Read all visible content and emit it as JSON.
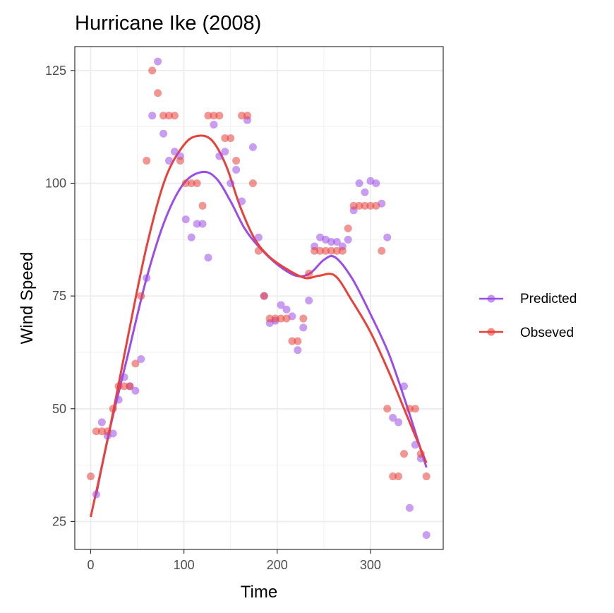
{
  "chart_data": {
    "type": "scatter",
    "title": "Hurricane Ike (2008)",
    "xlabel": "Time",
    "ylabel": "Wind Speed",
    "xlim": [
      -17,
      378
    ],
    "ylim": [
      18.8,
      130.3
    ],
    "x_ticks": [
      "0",
      "100",
      "200",
      "300"
    ],
    "y_ticks": [
      "25",
      "50",
      "75",
      "100",
      "125"
    ],
    "grid": true,
    "legend_position": "right",
    "series": [
      {
        "name": "Predicted",
        "color": "#9b4de8",
        "points": [
          {
            "x": 6,
            "y": 31
          },
          {
            "x": 12,
            "y": 47
          },
          {
            "x": 18,
            "y": 44
          },
          {
            "x": 24,
            "y": 44.5
          },
          {
            "x": 30,
            "y": 52
          },
          {
            "x": 36,
            "y": 57
          },
          {
            "x": 42,
            "y": 55
          },
          {
            "x": 48,
            "y": 54
          },
          {
            "x": 54,
            "y": 61
          },
          {
            "x": 60,
            "y": 79
          },
          {
            "x": 66,
            "y": 115
          },
          {
            "x": 72,
            "y": 127
          },
          {
            "x": 78,
            "y": 111
          },
          {
            "x": 84,
            "y": 105
          },
          {
            "x": 90,
            "y": 107
          },
          {
            "x": 96,
            "y": 106
          },
          {
            "x": 102,
            "y": 92
          },
          {
            "x": 108,
            "y": 88
          },
          {
            "x": 114,
            "y": 91
          },
          {
            "x": 120,
            "y": 91
          },
          {
            "x": 126,
            "y": 83.5
          },
          {
            "x": 132,
            "y": 113
          },
          {
            "x": 138,
            "y": 106
          },
          {
            "x": 144,
            "y": 107
          },
          {
            "x": 150,
            "y": 100
          },
          {
            "x": 156,
            "y": 103
          },
          {
            "x": 162,
            "y": 96
          },
          {
            "x": 168,
            "y": 114
          },
          {
            "x": 174,
            "y": 108
          },
          {
            "x": 180,
            "y": 88
          },
          {
            "x": 186,
            "y": 75
          },
          {
            "x": 192,
            "y": 69
          },
          {
            "x": 198,
            "y": 69.5
          },
          {
            "x": 204,
            "y": 73
          },
          {
            "x": 210,
            "y": 72
          },
          {
            "x": 216,
            "y": 70.5
          },
          {
            "x": 222,
            "y": 63
          },
          {
            "x": 228,
            "y": 68
          },
          {
            "x": 234,
            "y": 74
          },
          {
            "x": 240,
            "y": 86
          },
          {
            "x": 246,
            "y": 88
          },
          {
            "x": 252,
            "y": 87.5
          },
          {
            "x": 258,
            "y": 87
          },
          {
            "x": 264,
            "y": 87
          },
          {
            "x": 270,
            "y": 86
          },
          {
            "x": 276,
            "y": 87.5
          },
          {
            "x": 282,
            "y": 94
          },
          {
            "x": 288,
            "y": 100
          },
          {
            "x": 294,
            "y": 98
          },
          {
            "x": 300,
            "y": 100.5
          },
          {
            "x": 306,
            "y": 100
          },
          {
            "x": 312,
            "y": 95.5
          },
          {
            "x": 318,
            "y": 88
          },
          {
            "x": 324,
            "y": 48
          },
          {
            "x": 330,
            "y": 47
          },
          {
            "x": 336,
            "y": 55
          },
          {
            "x": 342,
            "y": 28
          },
          {
            "x": 348,
            "y": 42
          },
          {
            "x": 354,
            "y": 39
          },
          {
            "x": 360,
            "y": 22
          }
        ],
        "trend": [
          {
            "x": 6,
            "y": 31
          },
          {
            "x": 20,
            "y": 45
          },
          {
            "x": 40,
            "y": 62
          },
          {
            "x": 60,
            "y": 79
          },
          {
            "x": 80,
            "y": 92
          },
          {
            "x": 100,
            "y": 100
          },
          {
            "x": 120,
            "y": 102.5
          },
          {
            "x": 135,
            "y": 101
          },
          {
            "x": 150,
            "y": 96
          },
          {
            "x": 165,
            "y": 90
          },
          {
            "x": 180,
            "y": 86
          },
          {
            "x": 200,
            "y": 82
          },
          {
            "x": 220,
            "y": 79.5
          },
          {
            "x": 235,
            "y": 80
          },
          {
            "x": 250,
            "y": 83
          },
          {
            "x": 262,
            "y": 83.6
          },
          {
            "x": 280,
            "y": 79
          },
          {
            "x": 300,
            "y": 71
          },
          {
            "x": 320,
            "y": 62
          },
          {
            "x": 340,
            "y": 50
          },
          {
            "x": 360,
            "y": 37
          }
        ]
      },
      {
        "name": "Obseved",
        "color": "#e8403a",
        "points": [
          {
            "x": 0,
            "y": 35
          },
          {
            "x": 6,
            "y": 45
          },
          {
            "x": 12,
            "y": 45
          },
          {
            "x": 18,
            "y": 45
          },
          {
            "x": 24,
            "y": 50
          },
          {
            "x": 30,
            "y": 55
          },
          {
            "x": 36,
            "y": 55
          },
          {
            "x": 42,
            "y": 55
          },
          {
            "x": 48,
            "y": 60
          },
          {
            "x": 54,
            "y": 75
          },
          {
            "x": 60,
            "y": 105
          },
          {
            "x": 66,
            "y": 125
          },
          {
            "x": 72,
            "y": 120
          },
          {
            "x": 78,
            "y": 115
          },
          {
            "x": 84,
            "y": 115
          },
          {
            "x": 90,
            "y": 115
          },
          {
            "x": 96,
            "y": 105
          },
          {
            "x": 102,
            "y": 100
          },
          {
            "x": 108,
            "y": 100
          },
          {
            "x": 114,
            "y": 100
          },
          {
            "x": 120,
            "y": 95
          },
          {
            "x": 126,
            "y": 115
          },
          {
            "x": 132,
            "y": 115
          },
          {
            "x": 138,
            "y": 115
          },
          {
            "x": 144,
            "y": 110
          },
          {
            "x": 150,
            "y": 110
          },
          {
            "x": 156,
            "y": 105
          },
          {
            "x": 162,
            "y": 115
          },
          {
            "x": 168,
            "y": 115
          },
          {
            "x": 174,
            "y": 100
          },
          {
            "x": 180,
            "y": 85
          },
          {
            "x": 186,
            "y": 75
          },
          {
            "x": 192,
            "y": 70
          },
          {
            "x": 198,
            "y": 70
          },
          {
            "x": 204,
            "y": 70
          },
          {
            "x": 210,
            "y": 70
          },
          {
            "x": 216,
            "y": 65
          },
          {
            "x": 222,
            "y": 65
          },
          {
            "x": 228,
            "y": 70
          },
          {
            "x": 234,
            "y": 80
          },
          {
            "x": 240,
            "y": 85
          },
          {
            "x": 246,
            "y": 85
          },
          {
            "x": 252,
            "y": 85
          },
          {
            "x": 258,
            "y": 85
          },
          {
            "x": 264,
            "y": 85
          },
          {
            "x": 270,
            "y": 85
          },
          {
            "x": 276,
            "y": 90
          },
          {
            "x": 282,
            "y": 95
          },
          {
            "x": 288,
            "y": 95
          },
          {
            "x": 294,
            "y": 95
          },
          {
            "x": 300,
            "y": 95
          },
          {
            "x": 306,
            "y": 95
          },
          {
            "x": 312,
            "y": 85
          },
          {
            "x": 318,
            "y": 50
          },
          {
            "x": 324,
            "y": 35
          },
          {
            "x": 330,
            "y": 35
          },
          {
            "x": 336,
            "y": 40
          },
          {
            "x": 342,
            "y": 50
          },
          {
            "x": 348,
            "y": 50
          },
          {
            "x": 354,
            "y": 40
          },
          {
            "x": 360,
            "y": 35
          }
        ],
        "trend": [
          {
            "x": 0,
            "y": 26
          },
          {
            "x": 20,
            "y": 45
          },
          {
            "x": 40,
            "y": 66
          },
          {
            "x": 60,
            "y": 86
          },
          {
            "x": 80,
            "y": 101
          },
          {
            "x": 100,
            "y": 108.5
          },
          {
            "x": 115,
            "y": 110.5
          },
          {
            "x": 130,
            "y": 109.5
          },
          {
            "x": 145,
            "y": 104
          },
          {
            "x": 160,
            "y": 95
          },
          {
            "x": 175,
            "y": 88
          },
          {
            "x": 190,
            "y": 84
          },
          {
            "x": 210,
            "y": 81
          },
          {
            "x": 230,
            "y": 79
          },
          {
            "x": 245,
            "y": 79.5
          },
          {
            "x": 262,
            "y": 79.5
          },
          {
            "x": 280,
            "y": 74
          },
          {
            "x": 300,
            "y": 67
          },
          {
            "x": 320,
            "y": 58
          },
          {
            "x": 340,
            "y": 48
          },
          {
            "x": 360,
            "y": 38
          }
        ]
      }
    ]
  }
}
